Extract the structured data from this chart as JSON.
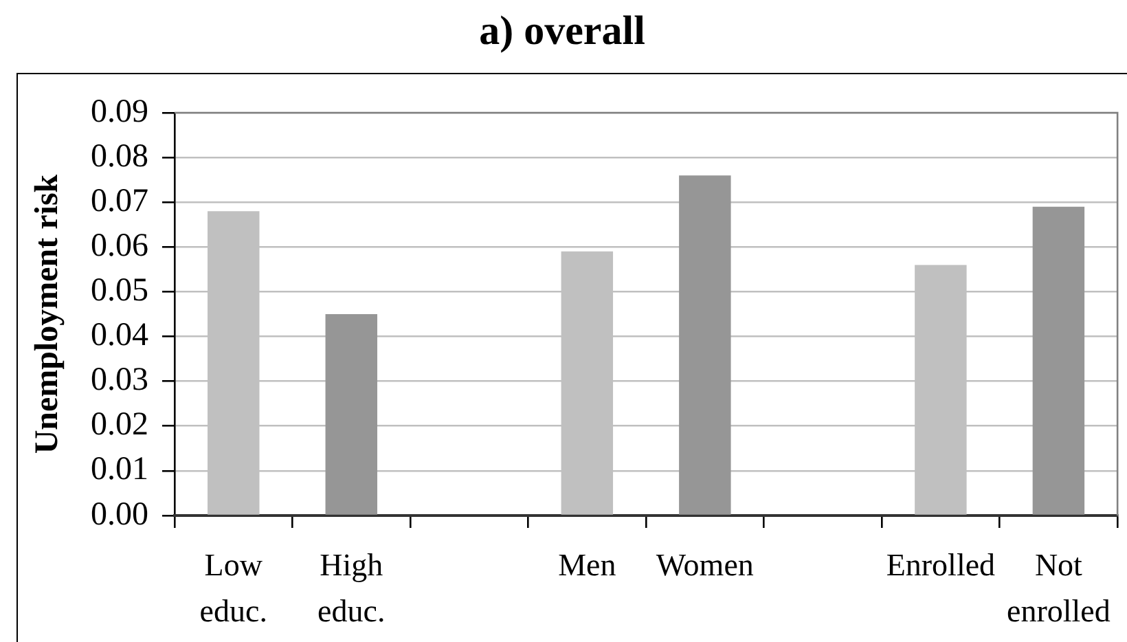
{
  "chart_data": {
    "type": "bar",
    "title": "a) overall",
    "ylabel": "Unemployment risk",
    "categories": [
      "Low educ.",
      "High educ.",
      null,
      "Men",
      "Women",
      null,
      "Enrolled",
      "Not enrolled"
    ],
    "values": [
      0.068,
      0.045,
      null,
      0.059,
      0.076,
      null,
      0.056,
      0.069
    ],
    "colors": [
      "#c0c0c0",
      "#969696",
      null,
      "#c0c0c0",
      "#969696",
      null,
      "#c0c0c0",
      "#969696"
    ],
    "ylim": [
      0,
      0.09
    ],
    "yticks": [
      {
        "value": 0,
        "label": "0.00"
      },
      0.01,
      0.02,
      0.03,
      0.04,
      0.05,
      0.06,
      0.07,
      0.08,
      0.09
    ],
    "grid": "y"
  }
}
